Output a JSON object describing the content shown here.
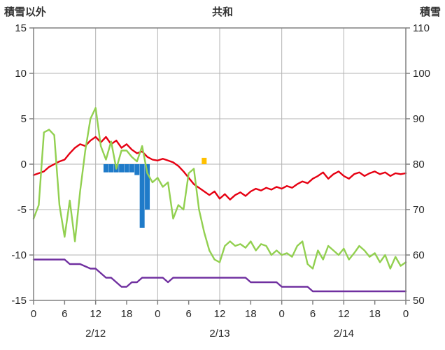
{
  "colors": {
    "background": "#ffffff",
    "grid": "#b3b3b3",
    "border": "#808080",
    "text": "#262626",
    "header_text": "#333333",
    "red_line": "#e60012",
    "green_line": "#92d050",
    "purple_line": "#7030a0",
    "blue_bar": "#1f7bc9",
    "orange_bar": "#ffc000"
  },
  "chart_data": {
    "type": "line",
    "title": "共和",
    "left_axis_title": "積雪以外",
    "right_axis_title": "積雪",
    "x_span": 72,
    "x_tick_hours": [
      0,
      6,
      12,
      18,
      24,
      30,
      36,
      42,
      48,
      54,
      60,
      66,
      72
    ],
    "x_tick_labels": [
      "0",
      "6",
      "12",
      "18",
      "0",
      "6",
      "12",
      "18",
      "0",
      "6",
      "12",
      "18",
      "0"
    ],
    "date_labels": [
      {
        "label": "2/12",
        "hour": 12
      },
      {
        "label": "2/13",
        "hour": 36
      },
      {
        "label": "2/14",
        "hour": 60
      }
    ],
    "left_ylim": [
      -15,
      15
    ],
    "left_ticks": [
      15,
      10,
      5,
      0,
      -5,
      -10,
      -15
    ],
    "right_ylim": [
      50,
      110
    ],
    "right_ticks": [
      110,
      100,
      90,
      80,
      70,
      60,
      50
    ],
    "h_grid_values": [
      10,
      5,
      0,
      -5,
      -10
    ],
    "v_grid_hours": [
      12,
      24,
      36,
      48,
      60
    ],
    "series": [
      {
        "name": "red-line",
        "type": "line",
        "axis": "left",
        "color": "#e60012",
        "values": [
          -1.2,
          -1.0,
          -0.8,
          -0.3,
          0.0,
          0.3,
          0.5,
          1.2,
          1.8,
          2.2,
          2.0,
          2.6,
          3.0,
          2.4,
          3.0,
          2.2,
          2.6,
          1.8,
          2.2,
          1.6,
          1.2,
          1.4,
          0.8,
          0.5,
          0.4,
          0.6,
          0.4,
          0.2,
          -0.2,
          -0.8,
          -1.5,
          -2.2,
          -2.6,
          -3.0,
          -3.4,
          -3.0,
          -3.8,
          -3.3,
          -3.9,
          -3.4,
          -3.1,
          -3.5,
          -3.0,
          -2.7,
          -2.9,
          -2.6,
          -2.8,
          -2.5,
          -2.7,
          -2.4,
          -2.6,
          -2.2,
          -1.9,
          -2.1,
          -1.6,
          -1.3,
          -0.9,
          -1.6,
          -1.1,
          -0.8,
          -1.3,
          -1.6,
          -1.1,
          -0.9,
          -1.3,
          -1.0,
          -0.8,
          -1.1,
          -0.9,
          -1.3,
          -1.0,
          -1.1,
          -1.0
        ]
      },
      {
        "name": "green-line",
        "type": "line",
        "axis": "left",
        "color": "#92d050",
        "values": [
          -6.0,
          -4.5,
          3.5,
          3.8,
          3.2,
          -4.5,
          -8.0,
          -4.0,
          -8.5,
          -3.0,
          1.5,
          5.0,
          6.2,
          2.0,
          0.5,
          2.5,
          -0.5,
          1.5,
          1.5,
          0.8,
          0.3,
          2.0,
          -1.0,
          -2.0,
          -1.5,
          -2.5,
          -2.0,
          -6.0,
          -4.5,
          -5.0,
          -1.0,
          -0.5,
          -5.0,
          -7.5,
          -9.5,
          -10.5,
          -10.8,
          -9.0,
          -8.5,
          -9.0,
          -8.8,
          -9.2,
          -8.5,
          -9.5,
          -8.8,
          -9.0,
          -10.0,
          -9.5,
          -10.0,
          -9.8,
          -10.2,
          -9.0,
          -8.5,
          -11.0,
          -11.5,
          -9.5,
          -10.5,
          -9.0,
          -9.5,
          -10.0,
          -9.3,
          -10.5,
          -9.8,
          -9.0,
          -9.5,
          -10.2,
          -9.8,
          -10.8,
          -10.0,
          -11.5,
          -10.2,
          -11.2,
          -10.8
        ]
      },
      {
        "name": "purple-line",
        "type": "line",
        "axis": "right",
        "color": "#7030a0",
        "values": [
          59,
          59,
          59,
          59,
          59,
          59,
          59,
          58,
          58,
          58,
          57.5,
          57,
          57,
          56,
          55,
          55,
          54,
          53,
          53,
          54,
          54,
          55,
          55,
          55,
          55,
          55,
          54,
          55,
          55,
          55,
          55,
          55,
          55,
          55,
          55,
          55,
          55,
          55,
          55,
          55,
          55,
          55,
          54,
          54,
          54,
          54,
          54,
          54,
          53,
          53,
          53,
          53,
          53,
          53,
          52,
          52,
          52,
          52,
          52,
          52,
          52,
          52,
          52,
          52,
          52,
          52,
          52,
          52,
          52,
          52,
          52,
          52,
          52
        ]
      },
      {
        "name": "blue-bars",
        "type": "bar",
        "axis": "left",
        "color": "#1f7bc9",
        "points": [
          [
            14,
            -0.9
          ],
          [
            15,
            -0.9
          ],
          [
            16,
            -0.9
          ],
          [
            17,
            -0.9
          ],
          [
            18,
            -0.9
          ],
          [
            19,
            -0.9
          ],
          [
            20,
            -1.2
          ],
          [
            21,
            -7.0
          ],
          [
            22,
            -5.0
          ]
        ]
      },
      {
        "name": "orange-bar",
        "type": "bar",
        "axis": "left",
        "color": "#ffc000",
        "points": [
          [
            33,
            0.7
          ]
        ]
      }
    ]
  }
}
